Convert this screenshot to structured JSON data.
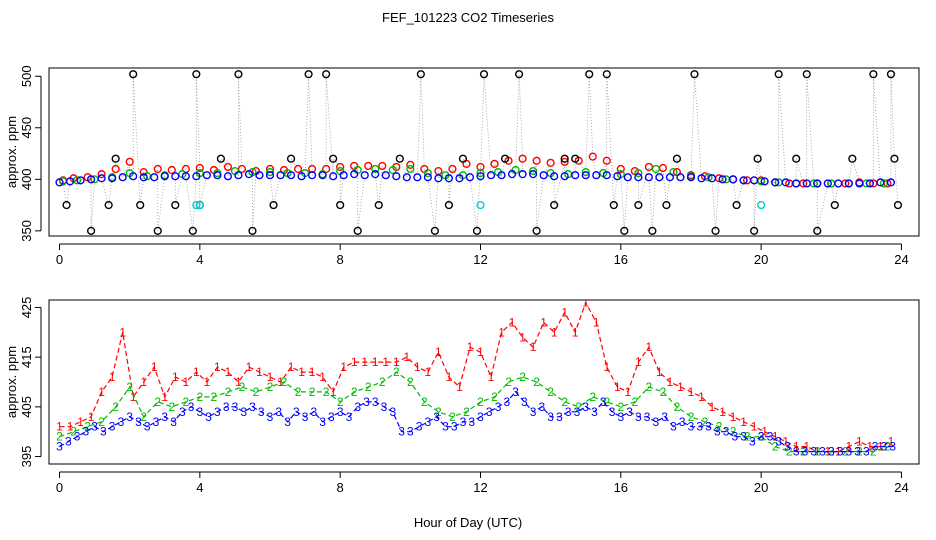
{
  "figure_title": "FEF_101223  CO2 Timeseries",
  "xlabel": "Hour of Day (UTC)",
  "chart_data": [
    {
      "type": "scatter",
      "panel": "top",
      "ylabel": "approx. ppm",
      "xlim": [
        -0.3,
        24.5
      ],
      "ylim": [
        345,
        508
      ],
      "x_ticks": [
        0,
        4,
        8,
        12,
        16,
        20,
        24
      ],
      "y_ticks": [
        350,
        400,
        450,
        500
      ],
      "colors": {
        "s1": "#ff0000",
        "s2": "#00bb00",
        "s3": "#0000ff",
        "extreme": "#000000",
        "cyan": "#00cccc"
      },
      "series": [
        {
          "color": "#ff0000",
          "x": [
            0.1,
            0.4,
            0.8,
            1.2,
            1.6,
            2.0,
            2.4,
            2.8,
            3.2,
            3.6,
            4.0,
            4.4,
            4.8,
            5.2,
            5.6,
            6.0,
            6.4,
            6.8,
            7.2,
            7.6,
            8.0,
            8.4,
            8.8,
            9.2,
            9.6,
            10.0,
            10.4,
            10.8,
            11.2,
            11.6,
            12.0,
            12.4,
            12.8,
            13.2,
            13.6,
            14.0,
            14.4,
            14.8,
            15.2,
            15.6,
            16.0,
            16.4,
            16.8,
            17.2,
            17.6,
            18.0,
            18.4,
            18.8,
            19.2,
            19.6,
            20.0,
            20.4,
            20.8,
            21.2,
            21.6,
            22.0,
            22.4,
            22.8,
            23.2,
            23.6
          ],
          "y": [
            399,
            401,
            402,
            405,
            410,
            417,
            407,
            410,
            409,
            410,
            411,
            409,
            412,
            410,
            408,
            410,
            409,
            410,
            410,
            410,
            412,
            413,
            413,
            413,
            412,
            414,
            410,
            408,
            410,
            415,
            412,
            415,
            418,
            420,
            418,
            416,
            417,
            418,
            422,
            418,
            410,
            408,
            412,
            411,
            407,
            404,
            403,
            401,
            400,
            399,
            399,
            397,
            396,
            396,
            396,
            396,
            396,
            397,
            396,
            396
          ]
        },
        {
          "color": "#00bb00",
          "x": [
            0.1,
            0.5,
            1.0,
            1.5,
            2.0,
            2.5,
            3.0,
            3.5,
            4.0,
            4.5,
            5.0,
            5.5,
            6.0,
            6.5,
            7.0,
            7.5,
            8.0,
            8.5,
            9.0,
            9.5,
            10.0,
            10.5,
            11.0,
            11.5,
            12.0,
            12.5,
            13.0,
            13.5,
            14.0,
            14.5,
            15.0,
            15.5,
            16.0,
            16.5,
            17.0,
            17.5,
            18.0,
            18.5,
            19.0,
            19.5,
            20.0,
            20.5,
            21.0,
            21.5,
            22.0,
            22.5,
            23.0,
            23.5
          ],
          "y": [
            398,
            399,
            400,
            402,
            406,
            403,
            404,
            405,
            406,
            406,
            408,
            407,
            407,
            406,
            406,
            405,
            408,
            409,
            410,
            409,
            410,
            406,
            404,
            404,
            406,
            407,
            409,
            408,
            406,
            405,
            407,
            406,
            405,
            406,
            410,
            407,
            403,
            402,
            400,
            399,
            398,
            397,
            396,
            396,
            396,
            396,
            396,
            396
          ]
        },
        {
          "color": "#0000ff",
          "x": [
            0.0,
            0.3,
            0.6,
            0.9,
            1.2,
            1.5,
            1.8,
            2.1,
            2.4,
            2.7,
            3.0,
            3.3,
            3.6,
            3.9,
            4.2,
            4.5,
            4.8,
            5.1,
            5.4,
            5.7,
            6.0,
            6.3,
            6.6,
            6.9,
            7.2,
            7.5,
            7.8,
            8.1,
            8.4,
            8.7,
            9.0,
            9.3,
            9.6,
            9.9,
            10.2,
            10.5,
            10.8,
            11.1,
            11.4,
            11.7,
            12.0,
            12.3,
            12.6,
            12.9,
            13.2,
            13.5,
            13.8,
            14.1,
            14.4,
            14.7,
            15.0,
            15.3,
            15.6,
            15.9,
            16.2,
            16.5,
            16.8,
            17.1,
            17.4,
            17.7,
            18.0,
            18.3,
            18.6,
            18.9,
            19.2,
            19.5,
            19.8,
            20.1,
            20.4,
            20.7,
            21.0,
            21.3,
            21.6,
            21.9,
            22.2,
            22.5,
            22.8,
            23.1,
            23.4,
            23.7
          ],
          "y": [
            397,
            398,
            399,
            400,
            401,
            401,
            402,
            403,
            402,
            402,
            403,
            403,
            403,
            403,
            404,
            404,
            403,
            404,
            405,
            404,
            404,
            404,
            404,
            403,
            404,
            404,
            403,
            404,
            405,
            404,
            405,
            404,
            403,
            402,
            402,
            402,
            401,
            401,
            401,
            402,
            403,
            404,
            404,
            405,
            405,
            405,
            404,
            403,
            403,
            404,
            404,
            404,
            404,
            403,
            402,
            402,
            402,
            402,
            402,
            402,
            402,
            401,
            401,
            400,
            400,
            399,
            399,
            398,
            397,
            397,
            396,
            396,
            396,
            396,
            396,
            396,
            396,
            396,
            397,
            397
          ]
        },
        {
          "color": "#000000",
          "x": [
            0.2,
            0.9,
            1.4,
            1.6,
            2.1,
            2.3,
            2.8,
            3.3,
            3.8,
            3.9,
            4.0,
            4.6,
            5.1,
            5.5,
            6.1,
            6.6,
            7.1,
            7.6,
            7.8,
            8.0,
            8.5,
            9.1,
            9.7,
            10.3,
            10.7,
            11.1,
            11.5,
            11.9,
            12.1,
            12.7,
            13.1,
            13.6,
            14.1,
            14.4,
            14.7,
            15.1,
            15.6,
            15.8,
            16.1,
            16.5,
            16.9,
            17.3,
            17.6,
            18.1,
            18.7,
            19.3,
            19.8,
            19.9,
            20.5,
            21.0,
            21.3,
            21.6,
            22.1,
            22.6,
            23.2,
            23.7,
            23.8,
            23.9
          ],
          "y": [
            375,
            350,
            375,
            420,
            502,
            375,
            350,
            375,
            350,
            502,
            375,
            420,
            502,
            350,
            375,
            420,
            502,
            502,
            420,
            375,
            350,
            375,
            420,
            502,
            350,
            375,
            420,
            350,
            502,
            420,
            502,
            350,
            375,
            420,
            420,
            502,
            502,
            375,
            350,
            375,
            350,
            375,
            420,
            502,
            350,
            375,
            350,
            420,
            502,
            420,
            502,
            350,
            375,
            420,
            502,
            502,
            420,
            375
          ]
        },
        {
          "color": "#00cccc",
          "x": [
            3.9,
            4.0,
            12.0,
            20.0
          ],
          "y": [
            375,
            375,
            375,
            375
          ]
        }
      ]
    },
    {
      "type": "line",
      "panel": "bottom",
      "ylabel": "approx. ppm",
      "xlim": [
        -0.3,
        24.5
      ],
      "ylim": [
        393.5,
        426.5
      ],
      "x_ticks": [
        0,
        4,
        8,
        12,
        16,
        20,
        24
      ],
      "y_ticks": [
        395,
        405,
        415,
        425
      ],
      "colors": {
        "s1": "#ff0000",
        "s2": "#00bb00",
        "s3": "#0000ff"
      },
      "series": [
        {
          "label": "1",
          "color": "#ff0000",
          "x": [
            0.0,
            0.3,
            0.6,
            0.9,
            1.2,
            1.5,
            1.8,
            2.1,
            2.4,
            2.7,
            3.0,
            3.3,
            3.6,
            3.9,
            4.2,
            4.5,
            4.8,
            5.1,
            5.4,
            5.7,
            6.0,
            6.3,
            6.6,
            6.9,
            7.2,
            7.5,
            7.8,
            8.1,
            8.4,
            8.7,
            9.0,
            9.3,
            9.6,
            9.9,
            10.2,
            10.5,
            10.8,
            11.1,
            11.4,
            11.7,
            12.0,
            12.3,
            12.6,
            12.9,
            13.2,
            13.5,
            13.8,
            14.1,
            14.4,
            14.7,
            15.0,
            15.3,
            15.6,
            15.9,
            16.2,
            16.5,
            16.8,
            17.1,
            17.4,
            17.7,
            18.0,
            18.3,
            18.6,
            18.9,
            19.2,
            19.5,
            19.8,
            20.1,
            20.4,
            20.7,
            21.0,
            21.3,
            21.6,
            21.9,
            22.2,
            22.5,
            22.8,
            23.1,
            23.4,
            23.7
          ],
          "y": [
            401,
            401,
            402,
            403,
            408,
            411,
            420,
            407,
            410,
            413,
            407,
            411,
            410,
            412,
            410,
            413,
            412,
            410,
            413,
            412,
            411,
            410,
            413,
            412,
            412,
            411,
            408,
            413,
            414,
            414,
            414,
            414,
            414,
            415,
            413,
            412,
            416,
            411,
            409,
            417,
            416,
            411,
            420,
            422,
            419,
            417,
            422,
            420,
            424,
            420,
            426,
            422,
            413,
            409,
            408,
            414,
            417,
            412,
            410,
            409,
            408,
            407,
            405,
            404,
            403,
            402,
            401,
            400,
            399,
            398,
            397,
            397,
            396,
            396,
            396,
            397,
            398,
            397,
            397,
            398
          ]
        },
        {
          "label": "2",
          "color": "#00bb00",
          "x": [
            0.0,
            0.4,
            0.8,
            1.2,
            1.6,
            2.0,
            2.4,
            2.8,
            3.2,
            3.6,
            4.0,
            4.4,
            4.8,
            5.2,
            5.6,
            6.0,
            6.4,
            6.8,
            7.2,
            7.6,
            8.0,
            8.4,
            8.8,
            9.2,
            9.6,
            10.0,
            10.4,
            10.8,
            11.2,
            11.6,
            12.0,
            12.4,
            12.8,
            13.2,
            13.6,
            14.0,
            14.4,
            14.8,
            15.2,
            15.6,
            16.0,
            16.4,
            16.8,
            17.2,
            17.6,
            18.0,
            18.4,
            18.8,
            19.2,
            19.6,
            20.0,
            20.4,
            20.8,
            21.2,
            21.6,
            22.0,
            22.4,
            22.8,
            23.2,
            23.6
          ],
          "y": [
            399,
            400,
            401,
            402,
            405,
            409,
            403,
            406,
            405,
            406,
            407,
            407,
            408,
            409,
            408,
            409,
            410,
            408,
            408,
            408,
            406,
            408,
            409,
            410,
            412,
            410,
            406,
            404,
            403,
            404,
            406,
            407,
            410,
            411,
            410,
            408,
            406,
            405,
            407,
            406,
            405,
            406,
            409,
            408,
            405,
            403,
            402,
            401,
            400,
            399,
            399,
            397,
            396,
            396,
            396,
            396,
            396,
            396,
            396,
            397
          ]
        },
        {
          "label": "3",
          "color": "#0000ff",
          "x": [
            0.0,
            0.25,
            0.5,
            0.75,
            1.0,
            1.25,
            1.5,
            1.75,
            2.0,
            2.25,
            2.5,
            2.75,
            3.0,
            3.25,
            3.5,
            3.75,
            4.0,
            4.25,
            4.5,
            4.75,
            5.0,
            5.25,
            5.5,
            5.75,
            6.0,
            6.25,
            6.5,
            6.75,
            7.0,
            7.25,
            7.5,
            7.75,
            8.0,
            8.25,
            8.5,
            8.75,
            9.0,
            9.25,
            9.5,
            9.75,
            10.0,
            10.25,
            10.5,
            10.75,
            11.0,
            11.25,
            11.5,
            11.75,
            12.0,
            12.25,
            12.5,
            12.75,
            13.0,
            13.25,
            13.5,
            13.75,
            14.0,
            14.25,
            14.5,
            14.75,
            15.0,
            15.25,
            15.5,
            15.75,
            16.0,
            16.25,
            16.5,
            16.75,
            17.0,
            17.25,
            17.5,
            17.75,
            18.0,
            18.25,
            18.5,
            18.75,
            19.0,
            19.25,
            19.5,
            19.75,
            20.0,
            20.25,
            20.5,
            20.75,
            21.0,
            21.25,
            21.5,
            21.75,
            22.0,
            22.25,
            22.5,
            22.75,
            23.0,
            23.25,
            23.5,
            23.75
          ],
          "y": [
            397,
            398,
            399,
            400,
            401,
            400,
            401,
            402,
            403,
            402,
            401,
            402,
            403,
            402,
            404,
            405,
            404,
            403,
            404,
            405,
            405,
            404,
            405,
            404,
            403,
            404,
            402,
            404,
            403,
            404,
            402,
            403,
            404,
            403,
            405,
            406,
            406,
            405,
            404,
            400,
            400,
            401,
            402,
            403,
            401,
            401,
            402,
            402,
            403,
            404,
            405,
            406,
            408,
            406,
            404,
            405,
            403,
            403,
            404,
            404,
            405,
            404,
            406,
            404,
            403,
            404,
            403,
            403,
            402,
            403,
            401,
            402,
            401,
            401,
            401,
            400,
            400,
            399,
            399,
            398,
            399,
            399,
            398,
            397,
            396,
            396,
            396,
            396,
            396,
            396,
            396,
            396,
            396,
            397,
            397,
            397
          ]
        }
      ]
    }
  ]
}
